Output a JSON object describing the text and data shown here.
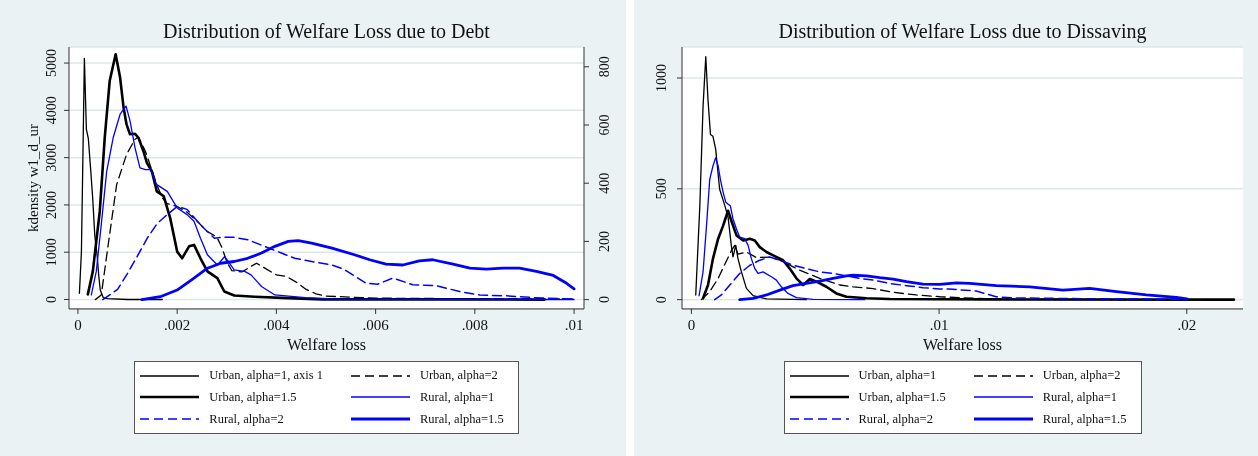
{
  "chart_data": [
    {
      "type": "line",
      "title": "Distribution of Welfare Loss due to Debt",
      "xlabel": "Welfare loss",
      "ylabel": "kdensity w1_d_ur",
      "xlim": [
        -0.00018,
        0.0102
      ],
      "xticks": [
        0,
        {
          "value": 0.002,
          "label": ".002"
        },
        {
          "value": 0.004,
          "label": ".004"
        },
        {
          "value": 0.006,
          "label": ".006"
        },
        {
          "value": 0.008,
          "label": ".008"
        },
        {
          "value": 0.01,
          "label": ".01"
        }
      ],
      "ylim": [
        -200,
        5340
      ],
      "yticks": [
        0,
        1000,
        2000,
        3000,
        4000,
        5000
      ],
      "y2lim": [
        -32,
        868
      ],
      "y2ticks": [
        0,
        200,
        400,
        600,
        800
      ],
      "grid": "y",
      "legend": "bottom",
      "marker": "none",
      "series": [
        {
          "name": "Urban, alpha=1, axis 1",
          "color": "#000000",
          "line_style": "solid",
          "x": [
            3e-05,
            7e-05,
            0.0001,
            0.00013,
            0.00017,
            0.00021,
            0.00026,
            0.0003,
            0.00034,
            0.00039,
            0.00042,
            0.00045,
            0.00051,
            0.0006,
            0.001,
            0.0017
          ],
          "values": [
            130,
            1000,
            3000,
            5100,
            3600,
            3400,
            2700,
            2100,
            1350,
            900,
            500,
            200,
            40,
            20,
            0,
            0
          ]
        },
        {
          "name": "Urban, alpha=2",
          "color": "#000000",
          "line_style": "dashed",
          "axis": "y2",
          "x": [
            0.00035,
            0.00047,
            0.00061,
            0.00078,
            0.00098,
            0.00115,
            0.00122,
            0.00136,
            0.0015,
            0.0016,
            0.0017,
            0.0018,
            0.002,
            0.0022,
            0.0024,
            0.0026,
            0.0028,
            0.0029,
            0.003,
            0.0031,
            0.0033,
            0.0036,
            0.0038,
            0.004,
            0.0042,
            0.0044,
            0.0046,
            0.0048,
            0.005,
            0.006,
            0.008,
            0.01
          ],
          "values": [
            0,
            16,
            188,
            395,
            499,
            551,
            558,
            510,
            440,
            390,
            350,
            330,
            320,
            300,
            270,
            235,
            215,
            180,
            130,
            100,
            95,
            125,
            105,
            85,
            80,
            60,
            35,
            20,
            12,
            5,
            3,
            2
          ]
        },
        {
          "name": "Urban, alpha=1.5",
          "color": "#000000",
          "line_style": "solid",
          "axis": "y2",
          "x": [
            0.0002,
            0.0003,
            0.00044,
            0.00054,
            0.00064,
            0.00076,
            0.00085,
            0.00092,
            0.00098,
            0.00105,
            0.00115,
            0.00122,
            0.00132,
            0.00139,
            0.00149,
            0.00159,
            0.00173,
            0.00186,
            0.002,
            0.0021,
            0.00224,
            0.00234,
            0.00247,
            0.00261,
            0.00281,
            0.00295,
            0.00315,
            0.00356,
            0.00424,
            0.00492,
            0.006,
            0.0075,
            0.0094
          ],
          "values": [
            18,
            97,
            303,
            556,
            751,
            843,
            763,
            660,
            602,
            568,
            570,
            556,
            510,
            470,
            441,
            372,
            355,
            280,
            165,
            142,
            183,
            188,
            142,
            97,
            74,
            28,
            14,
            10,
            5,
            1,
            1,
            1,
            0
          ]
        },
        {
          "name": "Rural, alpha=1",
          "color": "#0000ff",
          "line_style": "solid",
          "axis": "y2",
          "x": [
            0.00027,
            0.00037,
            0.00047,
            0.00058,
            0.00071,
            0.00085,
            0.00097,
            0.00105,
            0.00115,
            0.00125,
            0.00136,
            0.00146,
            0.00159,
            0.0018,
            0.002,
            0.0022,
            0.00234,
            0.00247,
            0.00261,
            0.00281,
            0.00296,
            0.00315,
            0.00336,
            0.00349,
            0.0037,
            0.00397,
            0.00458,
            0.00525,
            0.007,
            0.01
          ],
          "values": [
            16,
            97,
            257,
            441,
            556,
            637,
            665,
            614,
            522,
            453,
            447,
            447,
            395,
            372,
            315,
            292,
            269,
            211,
            154,
            119,
            148,
            102,
            97,
            85,
            45,
            16,
            7,
            2,
            1,
            0
          ]
        },
        {
          "name": "Rural, alpha=2",
          "color": "#0000ff",
          "line_style": "dashed",
          "axis": "y2",
          "x": [
            0.0005,
            0.0008,
            0.001,
            0.0012,
            0.0014,
            0.0016,
            0.0018,
            0.002,
            0.0022,
            0.00247,
            0.00275,
            0.00288,
            0.00315,
            0.00342,
            0.00376,
            0.0041,
            0.00437,
            0.00471,
            0.00512,
            0.00535,
            0.00554,
            0.00581,
            0.00604,
            0.00635,
            0.00675,
            0.00722,
            0.00769,
            0.0081,
            0.00864,
            0.00918,
            0.00998
          ],
          "values": [
            0,
            35,
            90,
            150,
            212,
            262,
            292,
            320,
            310,
            257,
            211,
            214,
            214,
            206,
            183,
            160,
            142,
            131,
            119,
            105,
            85,
            56,
            53,
            74,
            51,
            48,
            28,
            16,
            13,
            7,
            2
          ]
        },
        {
          "name": "Rural, alpha=1.5",
          "color": "#0000ff",
          "line_style": "solid",
          "axis": "y2",
          "x": [
            0.00129,
            0.00166,
            0.002,
            0.00234,
            0.00261,
            0.00288,
            0.00315,
            0.00342,
            0.0037,
            0.00397,
            0.00424,
            0.00444,
            0.00471,
            0.00512,
            0.00554,
            0.00588,
            0.00621,
            0.00655,
            0.00688,
            0.00715,
            0.00756,
            0.0079,
            0.00823,
            0.00857,
            0.0089,
            0.00924,
            0.00958,
            0.00985,
            0.01
          ],
          "values": [
            0,
            10,
            33,
            74,
            108,
            125,
            131,
            142,
            160,
            183,
            200,
            203,
            194,
            177,
            156,
            137,
            122,
            119,
            133,
            137,
            122,
            108,
            105,
            108,
            108,
            97,
            83,
            56,
            37
          ]
        }
      ]
    },
    {
      "type": "line",
      "title": "Distribution of Welfare Loss due to Dissaving",
      "xlabel": "Welfare loss",
      "xlim": [
        -0.00038,
        0.02227
      ],
      "xticks": [
        0,
        {
          "value": 0.01,
          "label": ".01"
        },
        {
          "value": 0.02,
          "label": ".02"
        }
      ],
      "ylim": [
        -42,
        1140
      ],
      "yticks": [
        0,
        500,
        1000
      ],
      "grid": "y",
      "legend": "bottom",
      "marker": "none",
      "series": [
        {
          "name": "Urban, alpha=1",
          "color": "#000000",
          "line_style": "solid",
          "x": [
            0.000175,
            0.00034,
            0.00047,
            0.00058,
            0.00067,
            0.00077,
            0.00087,
            0.00098,
            0.00114,
            0.00135,
            0.00148,
            0.00161,
            0.00168,
            0.00179,
            0.00188,
            0.00202,
            0.00222,
            0.00249,
            0.00303,
            0.00464
          ],
          "values": [
            21,
            424,
            872,
            1096,
            901,
            745,
            737,
            678,
            498,
            424,
            372,
            245,
            193,
            245,
            185,
            125,
            51,
            18,
            3,
            0
          ]
        },
        {
          "name": "Urban, alpha=2",
          "color": "#000000",
          "line_style": "dashed",
          "x": [
            0.0004,
            0.00074,
            0.00108,
            0.00135,
            0.00161,
            0.00175,
            0.00188,
            0.00222,
            0.00262,
            0.00316,
            0.00357,
            0.00437,
            0.00518,
            0.00599,
            0.00653,
            0.00733,
            0.00814,
            0.00908,
            0.01003,
            0.011,
            0.0123,
            0.016,
            0.02
          ],
          "values": [
            0,
            36,
            96,
            160,
            220,
            245,
            205,
            215,
            190,
            192,
            178,
            133,
            96,
            66,
            58,
            50,
            33,
            21,
            13,
            8,
            3,
            1,
            0
          ]
        },
        {
          "name": "Urban, alpha=1.5",
          "color": "#000000",
          "line_style": "solid",
          "x": [
            0.00047,
            0.00067,
            0.00087,
            0.00108,
            0.00128,
            0.00148,
            0.00161,
            0.00182,
            0.00209,
            0.00236,
            0.00256,
            0.00276,
            0.00303,
            0.0033,
            0.0037,
            0.00397,
            0.00424,
            0.00451,
            0.00478,
            0.00505,
            0.00545,
            0.00585,
            0.00626,
            0.00707,
            0.00801,
            0.012,
            0.0219
          ],
          "values": [
            6,
            66,
            185,
            275,
            334,
            401,
            357,
            290,
            267,
            275,
            267,
            237,
            215,
            200,
            178,
            140,
            96,
            66,
            93,
            81,
            58,
            28,
            13,
            6,
            3,
            1,
            0
          ]
        },
        {
          "name": "Rural, alpha=1",
          "color": "#0000ff",
          "line_style": "solid",
          "x": [
            0.00031,
            0.00047,
            0.00061,
            0.00074,
            0.00087,
            0.00098,
            0.00108,
            0.00117,
            0.00128,
            0.00139,
            0.00148,
            0.00157,
            0.00168,
            0.00182,
            0.00195,
            0.00215,
            0.00229,
            0.00242,
            0.00256,
            0.00269,
            0.00289,
            0.00323,
            0.00343,
            0.00363,
            0.0039,
            0.00424,
            0.00491,
            0.007
          ],
          "values": [
            18,
            125,
            334,
            543,
            603,
            640,
            603,
            543,
            484,
            439,
            431,
            424,
            364,
            319,
            282,
            275,
            245,
            185,
            140,
            118,
            125,
            103,
            88,
            58,
            28,
            9,
            1,
            0
          ]
        },
        {
          "name": "Rural, alpha=2",
          "color": "#0000ff",
          "line_style": "dashed",
          "x": [
            0.00094,
            0.00121,
            0.00155,
            0.00195,
            0.00236,
            0.00276,
            0.00316,
            0.00357,
            0.0041,
            0.00464,
            0.00518,
            0.00572,
            0.00626,
            0.0068,
            0.00733,
            0.00801,
            0.00868,
            0.00935,
            0.01003,
            0.0104,
            0.0115,
            0.0123,
            0.013,
            0.016,
            0.02
          ],
          "values": [
            0,
            21,
            66,
            118,
            155,
            178,
            192,
            178,
            155,
            140,
            125,
            118,
            107,
            96,
            88,
            73,
            63,
            54,
            48,
            48,
            39,
            13,
            8,
            4,
            1
          ]
        },
        {
          "name": "Rural, alpha=1.5",
          "color": "#0000ff",
          "line_style": "solid",
          "x": [
            0.00195,
            0.00249,
            0.00303,
            0.00357,
            0.0041,
            0.00464,
            0.00518,
            0.00572,
            0.00626,
            0.00653,
            0.00707,
            0.0076,
            0.00814,
            0.00868,
            0.00935,
            0.01003,
            0.0107,
            0.01123,
            0.01231,
            0.01366,
            0.015,
            0.01608,
            0.01716,
            0.01837,
            0.01958,
            0.02001
          ],
          "values": [
            0,
            6,
            21,
            43,
            63,
            73,
            84,
            96,
            107,
            110,
            107,
            99,
            93,
            81,
            70,
            69,
            76,
            73,
            63,
            58,
            43,
            51,
            36,
            21,
            10,
            3
          ]
        }
      ]
    }
  ]
}
